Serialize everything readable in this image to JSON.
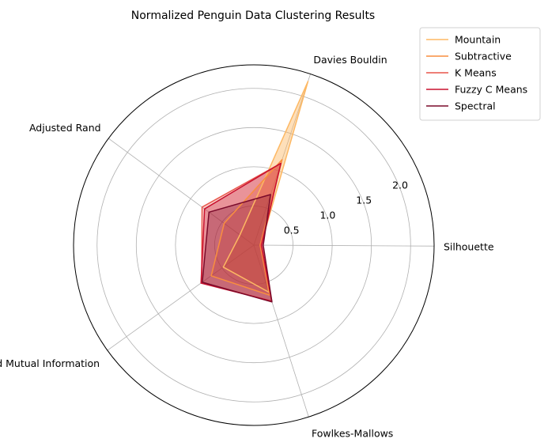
{
  "chart_data": {
    "type": "radar",
    "title": "Normalized Penguin Data Clustering Results",
    "axes": [
      "Silhouette",
      "Davies Bouldin",
      "Adjusted Rand",
      "Normalized Mutual Information",
      "Fowlkes-Mallows"
    ],
    "rlim": [
      0,
      2.3
    ],
    "r_ticks": [
      0.5,
      1.0,
      1.5,
      2.0
    ],
    "r_tick_labels": [
      "0.5",
      "1.0",
      "1.5",
      "2.0"
    ],
    "grid": true,
    "legend_position": "top-right",
    "series": [
      {
        "name": "Mountain",
        "color": "#fdb863",
        "values": [
          0.09,
          2.2,
          0.22,
          0.48,
          0.63
        ]
      },
      {
        "name": "Subtractive",
        "color": "#f98e3e",
        "values": [
          0.08,
          1.15,
          0.47,
          0.67,
          0.67
        ]
      },
      {
        "name": "K Means",
        "color": "#e8554a",
        "values": [
          0.09,
          1.1,
          0.82,
          0.82,
          0.75
        ]
      },
      {
        "name": "Fuzzy C Means",
        "color": "#c8102e",
        "values": [
          0.1,
          1.1,
          0.78,
          0.83,
          0.75
        ]
      },
      {
        "name": "Spectral",
        "color": "#7a0a2a",
        "values": [
          0.12,
          0.68,
          0.71,
          0.81,
          0.76
        ]
      }
    ]
  }
}
